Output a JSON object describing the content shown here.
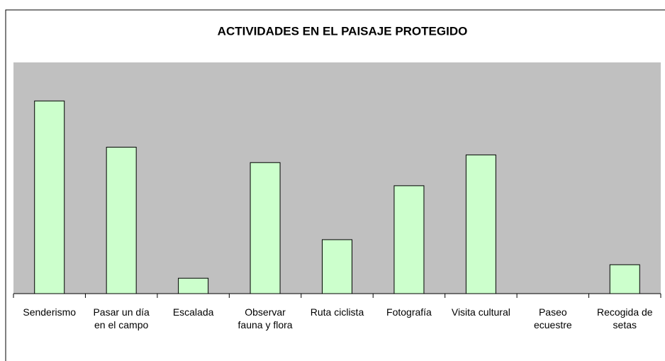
{
  "chart_data": {
    "type": "bar",
    "title": "ACTIVIDADES EN EL PAISAJE PROTEGIDO",
    "categories": [
      "Senderismo",
      "Pasar un día en el campo",
      "Escalada",
      "Observar fauna y flora",
      "Ruta ciclista",
      "Fotografía",
      "Visita cultural",
      "Paseo ecuestre",
      "Recogida de setas"
    ],
    "values": [
      100,
      76,
      8,
      68,
      28,
      56,
      72,
      0,
      15
    ],
    "color": "#ccffcc",
    "ylim": [
      0,
      120
    ],
    "grid": false
  }
}
